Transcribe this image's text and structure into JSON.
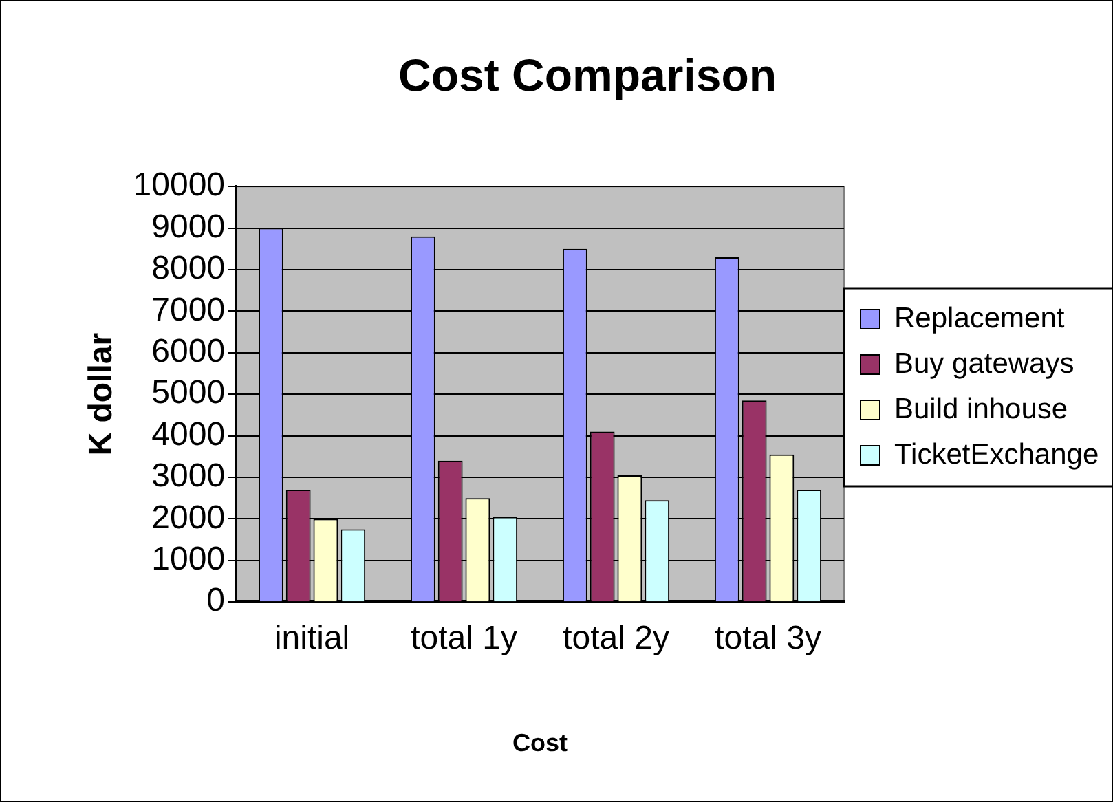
{
  "chart_data": {
    "type": "bar",
    "title": "Cost Comparison",
    "xlabel": "Cost",
    "ylabel": "K dollar",
    "categories": [
      "initial",
      "total 1y",
      "total 2y",
      "total 3y"
    ],
    "series": [
      {
        "name": "Replacement",
        "color": "#9999ff",
        "values": [
          9000,
          8800,
          8500,
          8300
        ]
      },
      {
        "name": "Buy gateways",
        "color": "#993366",
        "values": [
          2700,
          3400,
          4100,
          4850
        ]
      },
      {
        "name": "Build inhouse",
        "color": "#ffffcc",
        "values": [
          2000,
          2500,
          3050,
          3550
        ]
      },
      {
        "name": "TicketExchange",
        "color": "#ccffff",
        "values": [
          1750,
          2050,
          2450,
          2700
        ]
      }
    ],
    "ylim": [
      0,
      10000
    ],
    "yticks": [
      0,
      1000,
      2000,
      3000,
      4000,
      5000,
      6000,
      7000,
      8000,
      9000,
      10000
    ],
    "grid": "y",
    "legend": "right"
  }
}
